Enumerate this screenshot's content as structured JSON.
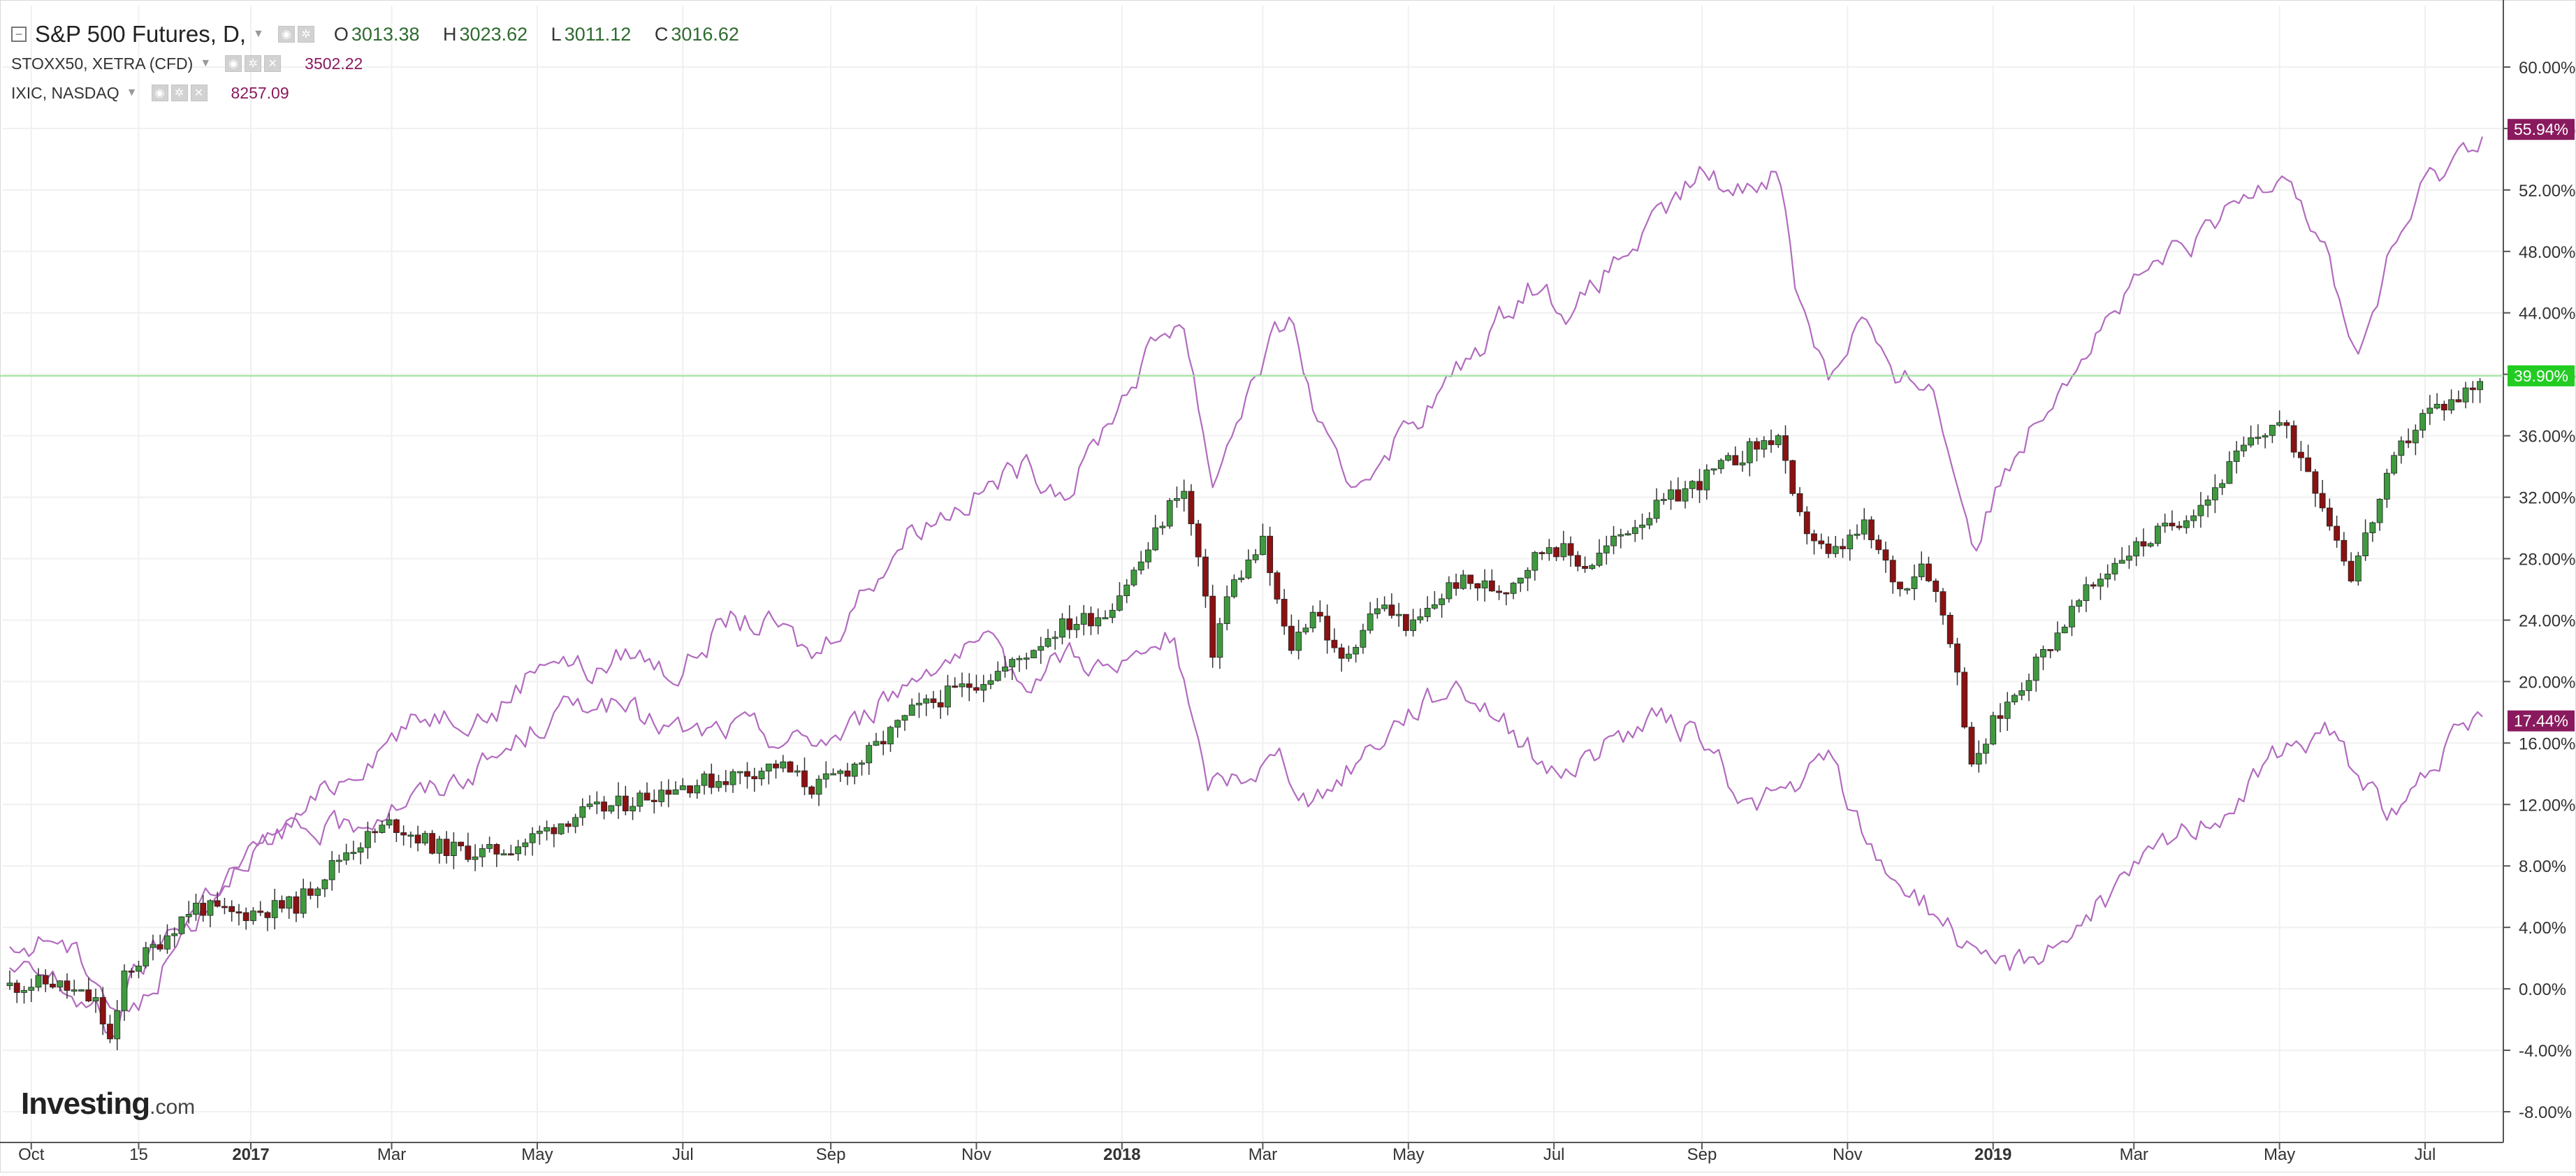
{
  "header": {
    "main_title": "S&P 500 Futures, D,",
    "ohlc": [
      {
        "k": "O",
        "v": "3013.38"
      },
      {
        "k": "H",
        "v": "3023.62"
      },
      {
        "k": "L",
        "v": "3011.12"
      },
      {
        "k": "C",
        "v": "3016.62"
      }
    ],
    "compare": [
      {
        "name": "STOXX50, XETRA (CFD)",
        "value": "3502.22"
      },
      {
        "name": "IXIC, NASDAQ",
        "value": "8257.09"
      }
    ]
  },
  "watermark": {
    "brand": "Investing",
    "suffix": ".com"
  },
  "colors": {
    "background": "#ffffff",
    "grid": "#f0f0f0",
    "axis": "#555555",
    "candle_up": "#3f9a3f",
    "candle_down": "#8a1212",
    "compare_line": "#b26bbf",
    "crosshair": "#9be79b",
    "tag_compare": "#8a1a5e",
    "tag_main": "#22cc22"
  },
  "chart_data": {
    "type": "line",
    "y_unit": "%",
    "ylim": [
      -10,
      64
    ],
    "grid": true,
    "y_ticks": [
      "-8.00%",
      "-4.00%",
      "0.00%",
      "4.00%",
      "8.00%",
      "12.00%",
      "16.00%",
      "20.00%",
      "24.00%",
      "28.00%",
      "32.00%",
      "36.00%",
      "40.00%",
      "44.00%",
      "48.00%",
      "52.00%",
      "56.00%",
      "60.00%"
    ],
    "x_ticks": [
      {
        "date": "2016-10-01",
        "label": "Oct"
      },
      {
        "date": "2016-11-15",
        "label": "15"
      },
      {
        "date": "2017-01-01",
        "label": "2017",
        "bold": true
      },
      {
        "date": "2017-03-01",
        "label": "Mar"
      },
      {
        "date": "2017-05-01",
        "label": "May"
      },
      {
        "date": "2017-07-01",
        "label": "Jul"
      },
      {
        "date": "2017-09-01",
        "label": "Sep"
      },
      {
        "date": "2017-11-01",
        "label": "Nov"
      },
      {
        "date": "2018-01-01",
        "label": "2018",
        "bold": true
      },
      {
        "date": "2018-03-01",
        "label": "Mar"
      },
      {
        "date": "2018-05-01",
        "label": "May"
      },
      {
        "date": "2018-07-01",
        "label": "Jul"
      },
      {
        "date": "2018-09-01",
        "label": "Sep"
      },
      {
        "date": "2018-11-01",
        "label": "Nov"
      },
      {
        "date": "2019-01-01",
        "label": "2019",
        "bold": true
      },
      {
        "date": "2019-03-01",
        "label": "Mar"
      },
      {
        "date": "2019-05-01",
        "label": "May"
      },
      {
        "date": "2019-07-01",
        "label": "Jul"
      }
    ],
    "x_range": [
      "2016-09-22",
      "2019-07-25"
    ],
    "series": [
      {
        "name": "S&P 500 Futures",
        "kind": "candles",
        "last_label": "39.90%",
        "last_value": 39.9,
        "x": [
          "2016-09-22",
          "2016-10-10",
          "2016-10-28",
          "2016-11-04",
          "2016-11-09",
          "2016-11-20",
          "2016-12-08",
          "2016-12-25",
          "2017-01-20",
          "2017-02-10",
          "2017-03-01",
          "2017-03-20",
          "2017-04-10",
          "2017-04-25",
          "2017-05-15",
          "2017-06-05",
          "2017-06-25",
          "2017-07-15",
          "2017-08-10",
          "2017-08-25",
          "2017-09-15",
          "2017-10-05",
          "2017-10-25",
          "2017-11-15",
          "2017-12-05",
          "2017-12-25",
          "2018-01-10",
          "2018-01-26",
          "2018-02-02",
          "2018-02-08",
          "2018-02-15",
          "2018-03-01",
          "2018-03-12",
          "2018-03-23",
          "2018-04-02",
          "2018-04-18",
          "2018-05-03",
          "2018-05-20",
          "2018-06-10",
          "2018-06-29",
          "2018-07-15",
          "2018-08-01",
          "2018-08-20",
          "2018-09-05",
          "2018-09-20",
          "2018-10-03",
          "2018-10-10",
          "2018-10-24",
          "2018-11-08",
          "2018-11-23",
          "2018-12-03",
          "2018-12-14",
          "2018-12-24",
          "2018-12-31",
          "2019-01-18",
          "2019-02-05",
          "2019-02-22",
          "2019-03-15",
          "2019-04-01",
          "2019-04-15",
          "2019-04-30",
          "2019-05-13",
          "2019-05-31",
          "2019-06-10",
          "2019-06-20",
          "2019-07-01",
          "2019-07-15",
          "2019-07-25"
        ],
        "y": [
          0.2,
          0.4,
          -0.9,
          -3.8,
          1.0,
          2.5,
          5.4,
          4.8,
          5.5,
          9.0,
          10.8,
          9.2,
          8.8,
          9.5,
          11.2,
          12.0,
          13.1,
          13.6,
          14.6,
          13.0,
          15.0,
          18.0,
          19.5,
          21.0,
          23.5,
          24.5,
          28.0,
          33.0,
          28.0,
          22.0,
          26.0,
          29.0,
          22.0,
          25.0,
          21.0,
          25.0,
          23.5,
          26.5,
          26.0,
          29.0,
          27.5,
          30.0,
          32.0,
          33.5,
          35.0,
          36.0,
          31.0,
          28.0,
          30.0,
          26.0,
          28.0,
          23.0,
          14.0,
          17.0,
          21.0,
          25.0,
          28.0,
          30.0,
          32.0,
          35.0,
          37.0,
          34.0,
          27.0,
          31.0,
          35.0,
          37.5,
          38.5,
          39.9
        ]
      },
      {
        "name": "IXIC, NASDAQ",
        "kind": "line",
        "last_label": "55.94%",
        "last_value": 55.94,
        "x": [
          "2016-09-22",
          "2016-10-10",
          "2016-10-28",
          "2016-11-04",
          "2016-11-09",
          "2016-11-25",
          "2016-12-15",
          "2017-01-20",
          "2017-02-10",
          "2017-03-01",
          "2017-03-20",
          "2017-04-14",
          "2017-05-05",
          "2017-05-25",
          "2017-06-09",
          "2017-06-28",
          "2017-07-20",
          "2017-08-10",
          "2017-08-25",
          "2017-09-15",
          "2017-10-05",
          "2017-10-30",
          "2017-11-20",
          "2017-12-10",
          "2017-12-30",
          "2018-01-15",
          "2018-01-26",
          "2018-02-08",
          "2018-02-20",
          "2018-03-12",
          "2018-03-23",
          "2018-04-05",
          "2018-04-20",
          "2018-05-10",
          "2018-06-01",
          "2018-06-20",
          "2018-07-10",
          "2018-07-25",
          "2018-08-15",
          "2018-08-31",
          "2018-09-15",
          "2018-10-03",
          "2018-10-10",
          "2018-10-24",
          "2018-11-08",
          "2018-11-20",
          "2018-12-05",
          "2018-12-24",
          "2019-01-10",
          "2019-01-30",
          "2019-02-20",
          "2019-03-10",
          "2019-03-31",
          "2019-04-20",
          "2019-05-03",
          "2019-05-20",
          "2019-06-03",
          "2019-06-15",
          "2019-06-30",
          "2019-07-10",
          "2019-07-25"
        ],
        "y": [
          1.0,
          0.5,
          -1.5,
          -3.5,
          0.0,
          3.0,
          6.5,
          11.0,
          14.0,
          16.5,
          18.0,
          18.0,
          22.0,
          20.5,
          22.0,
          20.5,
          24.0,
          23.5,
          21.5,
          26.0,
          30.0,
          32.0,
          34.0,
          32.5,
          38.0,
          42.0,
          44.0,
          33.0,
          38.0,
          44.0,
          37.5,
          32.0,
          35.0,
          38.0,
          42.0,
          46.0,
          44.0,
          47.0,
          50.0,
          53.0,
          52.0,
          53.5,
          46.0,
          40.0,
          44.0,
          39.0,
          40.0,
          29.0,
          35.0,
          40.0,
          44.0,
          47.0,
          49.0,
          52.0,
          54.0,
          48.0,
          41.0,
          47.0,
          52.0,
          53.5,
          55.94
        ]
      },
      {
        "name": "STOXX50, XETRA (CFD)",
        "kind": "line",
        "last_label": "17.44%",
        "last_value": 17.44,
        "x": [
          "2016-09-22",
          "2016-10-10",
          "2016-10-28",
          "2016-11-04",
          "2016-11-15",
          "2016-12-05",
          "2016-12-30",
          "2017-01-20",
          "2017-02-10",
          "2017-03-01",
          "2017-03-20",
          "2017-04-14",
          "2017-05-05",
          "2017-05-25",
          "2017-06-15",
          "2017-07-05",
          "2017-07-25",
          "2017-08-15",
          "2017-09-05",
          "2017-09-25",
          "2017-10-15",
          "2017-11-05",
          "2017-11-20",
          "2017-12-10",
          "2017-12-30",
          "2018-01-23",
          "2018-02-05",
          "2018-02-20",
          "2018-03-08",
          "2018-03-23",
          "2018-04-10",
          "2018-04-30",
          "2018-05-22",
          "2018-06-10",
          "2018-06-30",
          "2018-07-20",
          "2018-08-10",
          "2018-08-31",
          "2018-09-20",
          "2018-10-10",
          "2018-10-25",
          "2018-11-10",
          "2018-11-30",
          "2018-12-15",
          "2018-12-27",
          "2019-01-15",
          "2019-02-05",
          "2019-02-25",
          "2019-03-20",
          "2019-04-10",
          "2019-04-30",
          "2019-05-20",
          "2019-06-03",
          "2019-06-20",
          "2019-07-05",
          "2019-07-25"
        ],
        "y": [
          2.0,
          3.5,
          1.0,
          -1.0,
          -1.5,
          4.0,
          9.0,
          10.0,
          10.5,
          12.0,
          13.0,
          15.0,
          17.5,
          19.0,
          17.5,
          16.5,
          17.0,
          16.0,
          16.5,
          19.0,
          21.5,
          22.0,
          20.0,
          22.0,
          20.5,
          23.0,
          13.0,
          14.0,
          15.0,
          12.0,
          15.0,
          18.0,
          20.0,
          17.5,
          14.0,
          15.5,
          17.5,
          16.5,
          12.0,
          13.0,
          15.0,
          9.0,
          6.0,
          4.0,
          1.0,
          2.0,
          4.0,
          7.0,
          10.0,
          12.0,
          15.0,
          17.0,
          14.0,
          11.0,
          15.0,
          17.44
        ]
      }
    ]
  }
}
